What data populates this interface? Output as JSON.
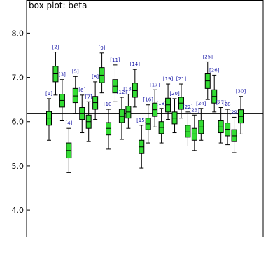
{
  "chart_data": {
    "type": "box",
    "title": "box plot: beta",
    "xlabel": "",
    "ylabel": "",
    "ylim": [
      3.4,
      8.75
    ],
    "yticks": [
      4.0,
      5.0,
      6.0,
      7.0,
      8.0
    ],
    "ytick_labels": [
      "4.0",
      "5.0",
      "6.0",
      "7.0",
      "8.0"
    ],
    "reference_line": 6.18,
    "grid": false,
    "colors": {
      "box_fill": "#33dd33",
      "box_stroke": "#000000",
      "label": "#1a1aa8",
      "axis": "#000000"
    },
    "boxes": [
      {
        "label": "[1]",
        "whisker_low": 5.58,
        "q1": 5.92,
        "median": 6.08,
        "q3": 6.23,
        "whisker_high": 6.52
      },
      {
        "label": "[2]",
        "whisker_low": 6.6,
        "q1": 6.9,
        "median": 7.08,
        "q3": 7.25,
        "whisker_high": 7.57
      },
      {
        "label": "[3]",
        "whisker_low": 6.02,
        "q1": 6.33,
        "median": 6.48,
        "q3": 6.62,
        "whisker_high": 6.95
      },
      {
        "label": "[4]",
        "whisker_low": 4.85,
        "q1": 5.18,
        "median": 5.35,
        "q3": 5.52,
        "whisker_high": 5.85
      },
      {
        "label": "[5]",
        "whisker_low": 6.18,
        "q1": 6.43,
        "median": 6.58,
        "q3": 6.75,
        "whisker_high": 7.02
      },
      {
        "label": "[6]",
        "whisker_low": 5.75,
        "q1": 6.05,
        "median": 6.18,
        "q3": 6.32,
        "whisker_high": 6.6
      },
      {
        "label": "[7]",
        "whisker_low": 5.55,
        "q1": 5.85,
        "median": 6.0,
        "q3": 6.15,
        "whisker_high": 6.45
      },
      {
        "label": "[8]",
        "whisker_low": 6.05,
        "q1": 6.28,
        "median": 6.43,
        "q3": 6.57,
        "whisker_high": 6.9
      },
      {
        "label": "[9]",
        "whisker_low": 6.65,
        "q1": 6.88,
        "median": 7.05,
        "q3": 7.22,
        "whisker_high": 7.55
      },
      {
        "label": "[10]",
        "whisker_low": 5.38,
        "q1": 5.7,
        "median": 5.85,
        "q3": 5.98,
        "whisker_high": 6.28
      },
      {
        "label": "[11]",
        "whisker_low": 6.45,
        "q1": 6.65,
        "median": 6.8,
        "q3": 6.95,
        "whisker_high": 7.28
      },
      {
        "label": "[12]",
        "whisker_low": 5.6,
        "q1": 5.98,
        "median": 6.12,
        "q3": 6.28,
        "whisker_high": 6.55
      },
      {
        "label": "[13]",
        "whisker_low": 5.85,
        "q1": 6.08,
        "median": 6.22,
        "q3": 6.35,
        "whisker_high": 6.62
      },
      {
        "label": "[14]",
        "whisker_low": 6.33,
        "q1": 6.55,
        "median": 6.7,
        "q3": 6.87,
        "whisker_high": 7.18
      },
      {
        "label": "[15]",
        "whisker_low": 4.95,
        "q1": 5.28,
        "median": 5.43,
        "q3": 5.58,
        "whisker_high": 5.92
      },
      {
        "label": "[16]",
        "whisker_low": 5.52,
        "q1": 5.82,
        "median": 5.95,
        "q3": 6.08,
        "whisker_high": 6.38
      },
      {
        "label": "[17]",
        "whisker_low": 5.88,
        "q1": 6.12,
        "median": 6.27,
        "q3": 6.42,
        "whisker_high": 6.72
      },
      {
        "label": "[18]",
        "whisker_low": 5.52,
        "q1": 5.73,
        "median": 5.87,
        "q3": 6.0,
        "whisker_high": 6.3
      },
      {
        "label": "[19]",
        "whisker_low": 6.05,
        "q1": 6.22,
        "median": 6.38,
        "q3": 6.53,
        "whisker_high": 6.85
      },
      {
        "label": "[20]",
        "whisker_low": 5.75,
        "q1": 5.95,
        "median": 6.08,
        "q3": 6.22,
        "whisker_high": 6.52
      },
      {
        "label": "[21]",
        "whisker_low": 6.08,
        "q1": 6.28,
        "median": 6.42,
        "q3": 6.55,
        "whisker_high": 6.85
      },
      {
        "label": "[22]",
        "whisker_low": 5.45,
        "q1": 5.65,
        "median": 5.77,
        "q3": 5.92,
        "whisker_high": 6.22
      },
      {
        "label": "[23]",
        "whisker_low": 5.35,
        "q1": 5.58,
        "median": 5.72,
        "q3": 5.85,
        "whisker_high": 6.15
      },
      {
        "label": "[24]",
        "whisker_low": 5.58,
        "q1": 5.73,
        "median": 5.88,
        "q3": 6.03,
        "whisker_high": 6.3
      },
      {
        "label": "[25]",
        "whisker_low": 6.5,
        "q1": 6.75,
        "median": 6.92,
        "q3": 7.08,
        "whisker_high": 7.35
      },
      {
        "label": "[26]",
        "whisker_low": 6.22,
        "q1": 6.42,
        "median": 6.57,
        "q3": 6.72,
        "whisker_high": 7.05
      },
      {
        "label": "[27]",
        "whisker_low": 5.52,
        "q1": 5.75,
        "median": 5.88,
        "q3": 6.02,
        "whisker_high": 6.32
      },
      {
        "label": "[28]",
        "whisker_low": 5.48,
        "q1": 5.68,
        "median": 5.83,
        "q3": 5.97,
        "whisker_high": 6.28
      },
      {
        "label": "[29]",
        "whisker_low": 5.3,
        "q1": 5.55,
        "median": 5.68,
        "q3": 5.82,
        "whisker_high": 6.1
      },
      {
        "label": "[30]",
        "whisker_low": 5.72,
        "q1": 5.97,
        "median": 6.12,
        "q3": 6.27,
        "whisker_high": 6.57
      }
    ]
  }
}
